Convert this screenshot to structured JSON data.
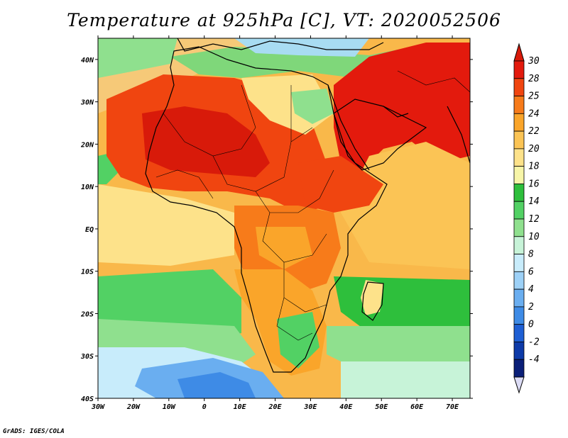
{
  "title": "Temperature at 925hPa [C], VT: 2020052506",
  "credit": "GrADS: IGES/COLA",
  "map": {
    "projection": "latlon",
    "lon_range": [
      -30,
      75
    ],
    "lat_range": [
      -40,
      45
    ],
    "lon_ticks": [
      "30W",
      "20W",
      "10W",
      "0",
      "10E",
      "20E",
      "30E",
      "40E",
      "50E",
      "60E",
      "70E"
    ],
    "lat_ticks": [
      "40S",
      "30S",
      "20S",
      "10S",
      "EQ",
      "10N",
      "20N",
      "30N",
      "40N"
    ],
    "variable": "Temperature at 925hPa",
    "units": "C"
  },
  "colorbar": {
    "orientation": "vertical",
    "levels": [
      "30",
      "28",
      "25",
      "24",
      "22",
      "20",
      "18",
      "16",
      "14",
      "12",
      "10",
      "8",
      "6",
      "4",
      "2",
      "0",
      "-2",
      "-4"
    ],
    "colors": [
      "#e31a0d",
      "#f04510",
      "#f77b1a",
      "#faa52a",
      "#fbc455",
      "#fde28a",
      "#f7f5a8",
      "#2ebf3c",
      "#52d164",
      "#8fe08e",
      "#c7f3d8",
      "#c8ecfb",
      "#9dd1f7",
      "#6aaef0",
      "#3e8be6",
      "#1e5fd4",
      "#0d3aa8",
      "#0a1f78"
    ],
    "top_color": "#d81a0a",
    "bottom_color": "#dcdcf5"
  }
}
